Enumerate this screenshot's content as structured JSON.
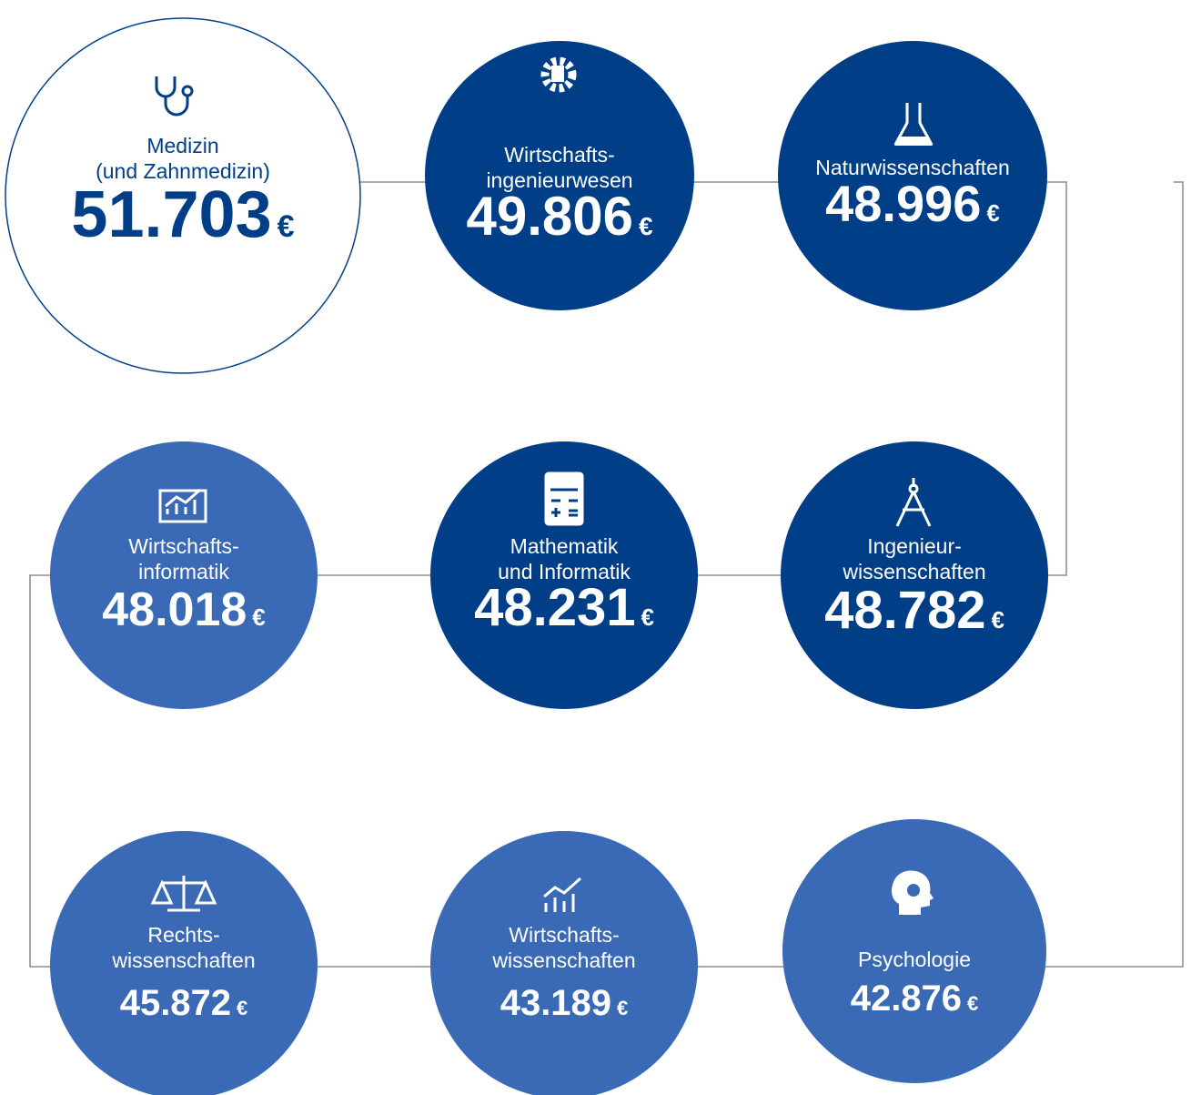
{
  "currency": "€",
  "nodes": [
    {
      "label": [
        "Medizin",
        "(und Zahnmedizin)"
      ],
      "value": "51.703"
    },
    {
      "label": [
        "Wirtschafts-",
        "ingenieurwesen"
      ],
      "value": "49.806"
    },
    {
      "label": [
        "Naturwissenschaften"
      ],
      "value": "48.996"
    },
    {
      "label": [
        "Wirtschafts-",
        "informatik"
      ],
      "value": "48.018"
    },
    {
      "label": [
        "Mathematik",
        "und Informatik"
      ],
      "value": "48.231"
    },
    {
      "label": [
        "Ingenieur-",
        "wissenschaften"
      ],
      "value": "48.782"
    },
    {
      "label": [
        "Rechts-",
        "wissenschaften"
      ],
      "value": "45.872"
    },
    {
      "label": [
        "Wirtschafts-",
        "wissenschaften"
      ],
      "value": "43.189"
    },
    {
      "label": [
        "Psychologie"
      ],
      "value": "42.876"
    }
  ]
}
